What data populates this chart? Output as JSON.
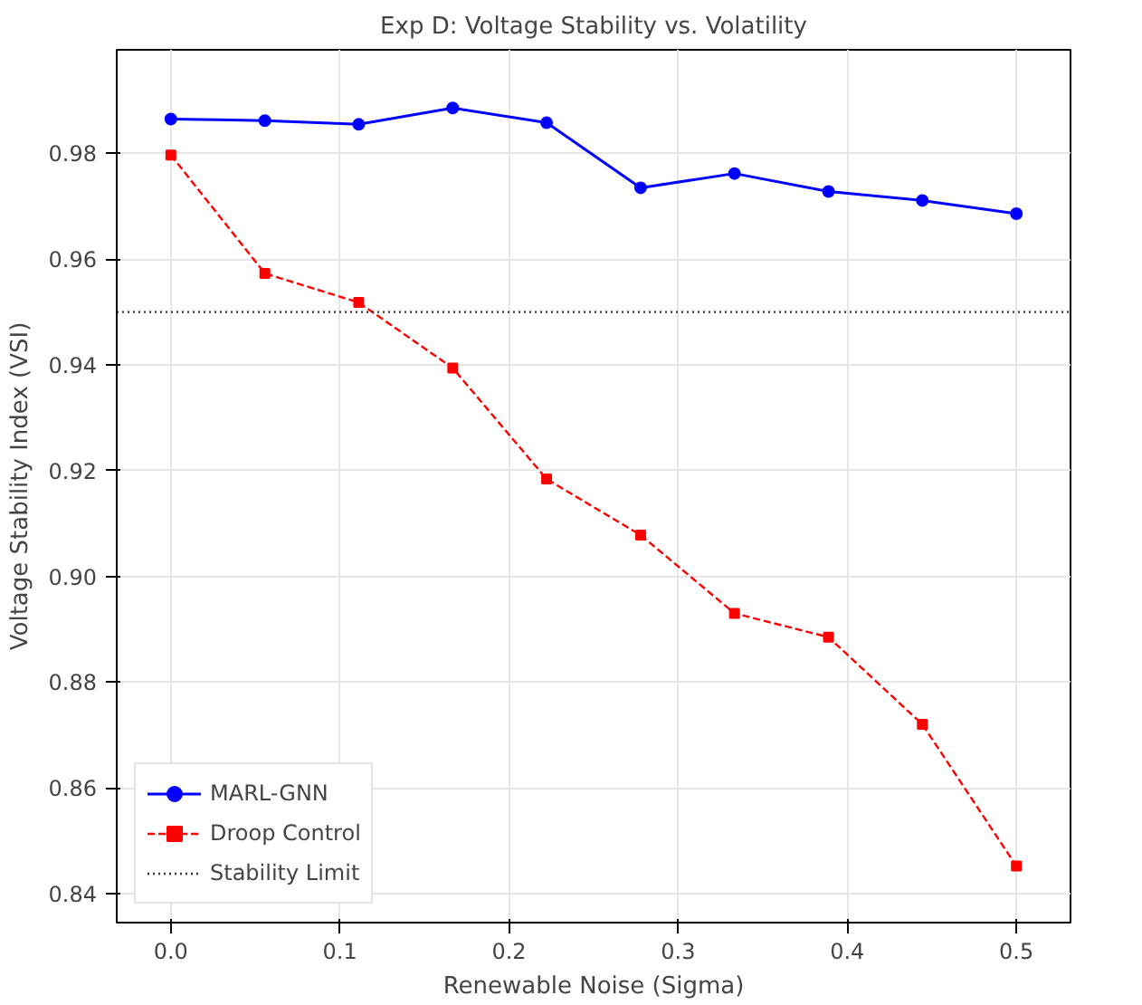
{
  "chart_data": {
    "type": "line",
    "title": "Exp D: Voltage Stability vs. Volatility",
    "xlabel": "Renewable Noise (Sigma)",
    "ylabel": "Voltage Stability Index (VSI)",
    "x": [
      0.0,
      0.0556,
      0.1111,
      0.1667,
      0.2222,
      0.2778,
      0.3333,
      0.3889,
      0.4444,
      0.5
    ],
    "series": [
      {
        "name": "MARL-GNN",
        "color": "#0000ff",
        "marker": "circle",
        "line_style": "solid",
        "values": [
          0.9865,
          0.9862,
          0.9855,
          0.9886,
          0.9858,
          0.9735,
          0.9762,
          0.9728,
          0.9711,
          0.9686
        ]
      },
      {
        "name": "Droop Control",
        "color": "#ff0000",
        "marker": "square",
        "line_style": "dashed",
        "values": [
          0.9797,
          0.9573,
          0.9518,
          0.9394,
          0.9184,
          0.9078,
          0.893,
          0.8885,
          0.872,
          0.8452
        ]
      }
    ],
    "ref_lines": [
      {
        "axis": "y",
        "value": 0.95,
        "label": "Stability Limit",
        "color": "#333333",
        "line_style": "dotted"
      }
    ],
    "xlim": [
      -0.032,
      0.532
    ],
    "ylim": [
      0.8345,
      0.9996
    ],
    "xticks": [
      {
        "value": 0.0,
        "label": "0.0"
      },
      {
        "value": 0.1,
        "label": "0.1"
      },
      {
        "value": 0.2,
        "label": "0.2"
      },
      {
        "value": 0.3,
        "label": "0.3"
      },
      {
        "value": 0.4,
        "label": "0.4"
      },
      {
        "value": 0.5,
        "label": "0.5"
      }
    ],
    "yticks": [
      {
        "value": 0.84,
        "label": "0.84"
      },
      {
        "value": 0.86,
        "label": "0.86"
      },
      {
        "value": 0.88,
        "label": "0.88"
      },
      {
        "value": 0.9,
        "label": "0.90"
      },
      {
        "value": 0.92,
        "label": "0.92"
      },
      {
        "value": 0.94,
        "label": "0.94"
      },
      {
        "value": 0.96,
        "label": "0.96"
      },
      {
        "value": 0.98,
        "label": "0.98"
      }
    ],
    "grid": true,
    "legend": "bottom left"
  }
}
